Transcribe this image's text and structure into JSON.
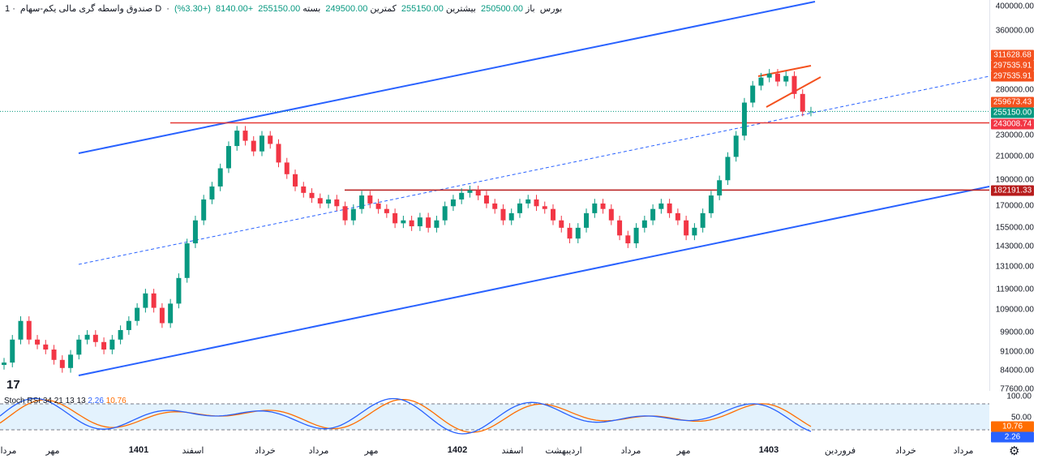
{
  "header": {
    "symbol": "صندوق واسطه گری مالی یکم-سهام",
    "interval": "1D",
    "exchange": "بورس",
    "open_label": "باز",
    "open_value": "250500.00",
    "high_label": "بیشترین",
    "high_value": "255150.00",
    "low_label": "کمترین",
    "low_value": "249500.00",
    "close_label": "بسته",
    "close_value": "255150.00",
    "change": "+8140.00",
    "change_pct": "(+3.30%)"
  },
  "price_axis": {
    "ticks": [
      "400000.00",
      "360000.00",
      "280000.00",
      "230000.00",
      "210000.00",
      "190000.00",
      "170000.00",
      "155000.00",
      "143000.00",
      "131000.00",
      "119000.00",
      "109000.00",
      "99000.00",
      "91000.00",
      "84000.00",
      "77600.00"
    ]
  },
  "price_tags": [
    {
      "value": "311628.68",
      "color": "#f4511e"
    },
    {
      "value": "297535.91",
      "color": "#f4511e"
    },
    {
      "value": "297535.91",
      "color": "#f4511e"
    },
    {
      "value": "259673.43",
      "color": "#f4511e"
    },
    {
      "value": "255150.00",
      "color": "#089981"
    },
    {
      "value": "243008.74",
      "color": "#f23645"
    },
    {
      "value": "182191.33",
      "color": "#b71c1c"
    }
  ],
  "time_axis": {
    "labels": [
      {
        "text": "مرداد",
        "year": false
      },
      {
        "text": "مهر",
        "year": false
      },
      {
        "text": "1401",
        "year": true
      },
      {
        "text": "اسفند",
        "year": false
      },
      {
        "text": "خرداد",
        "year": false
      },
      {
        "text": "مرداد",
        "year": false
      },
      {
        "text": "مهر",
        "year": false
      },
      {
        "text": "1402",
        "year": true
      },
      {
        "text": "اسفند",
        "year": false
      },
      {
        "text": "اردیبهشت",
        "year": false
      },
      {
        "text": "مرداد",
        "year": false
      },
      {
        "text": "مهر",
        "year": false
      },
      {
        "text": "1403",
        "year": true
      },
      {
        "text": "فروردین",
        "year": false
      },
      {
        "text": "خرداد",
        "year": false
      },
      {
        "text": "مرداد",
        "year": false
      }
    ]
  },
  "indicator": {
    "name": "Stoch RSI",
    "params": "34 21 13 13",
    "k_value": "2.26",
    "d_value": "10.76",
    "axis_ticks": [
      "100.00",
      "50.00"
    ],
    "k_color": "#2962ff",
    "d_color": "#ff6d00"
  },
  "icons": {
    "logo": "tradingview-logo-icon",
    "settings": "gear-icon"
  },
  "logo_text": "17",
  "chart_data": {
    "type": "candlestick",
    "y_axis_scale": "log",
    "ylim": [
      77600,
      400000
    ],
    "channel_color": "#2962ff",
    "close_series": [
      87000,
      96000,
      104000,
      96000,
      94000,
      92000,
      88000,
      85000,
      90000,
      96000,
      98000,
      95000,
      92000,
      96000,
      100000,
      104000,
      110000,
      117000,
      110000,
      103000,
      112000,
      125000,
      145000,
      160000,
      175000,
      185000,
      200000,
      220000,
      235000,
      225000,
      215000,
      230000,
      222000,
      205000,
      195000,
      185000,
      180000,
      176000,
      172000,
      175000,
      170000,
      160000,
      168000,
      178000,
      172000,
      168000,
      165000,
      158000,
      160000,
      156000,
      162000,
      155000,
      160000,
      170000,
      175000,
      180000,
      182000,
      178000,
      172000,
      168000,
      160000,
      165000,
      172000,
      175000,
      170000,
      168000,
      160000,
      155000,
      148000,
      155000,
      165000,
      172000,
      168000,
      160000,
      150000,
      145000,
      155000,
      160000,
      168000,
      172000,
      165000,
      160000,
      150000,
      155000,
      165000,
      178000,
      190000,
      210000,
      230000,
      265000,
      285000,
      295000,
      300000,
      290000,
      297000,
      275000,
      255000,
      255150
    ],
    "horizontal_levels": [
      243008.74,
      182191.33
    ],
    "last_close": 255150
  }
}
